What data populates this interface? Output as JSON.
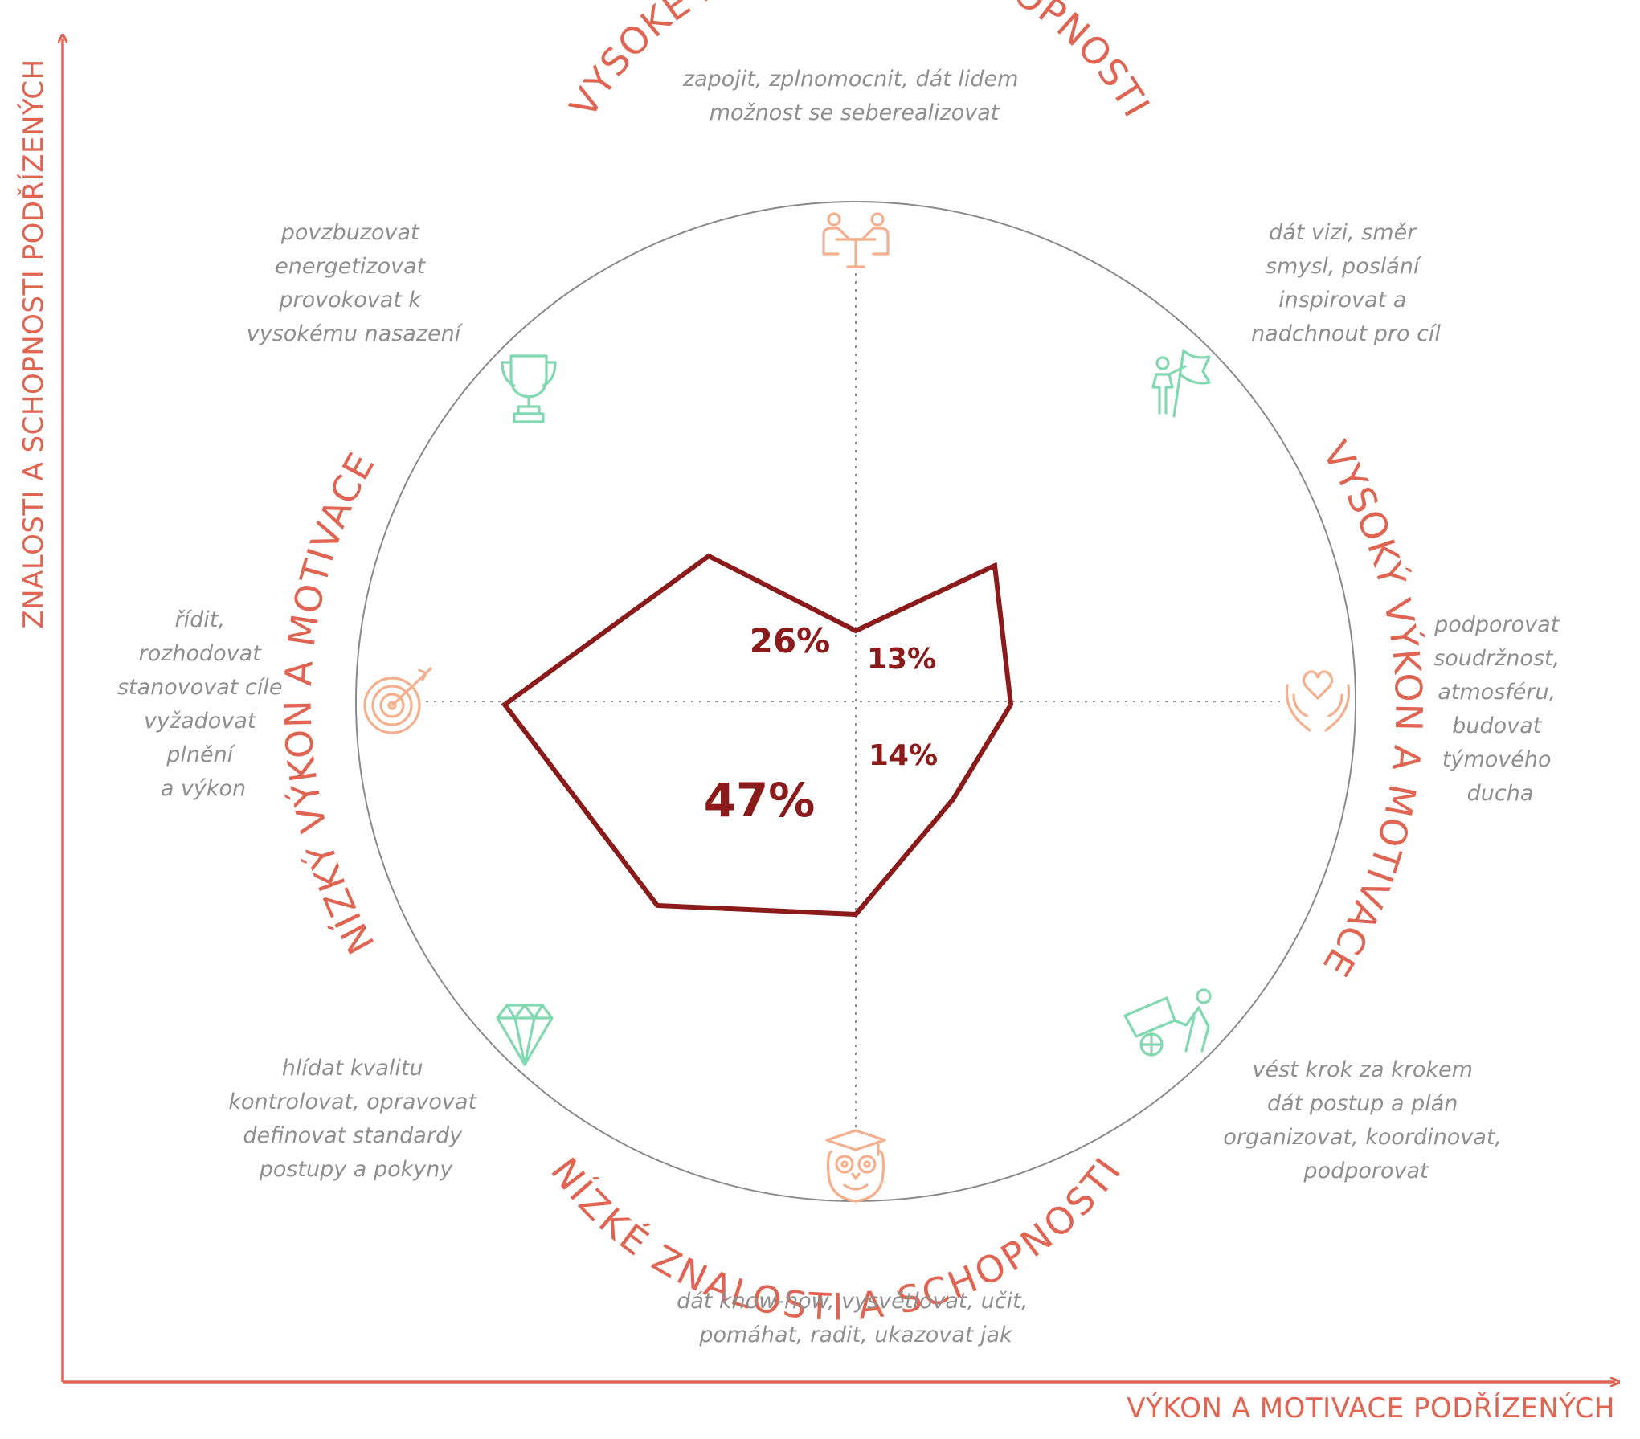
{
  "axes": {
    "y_label": "ZNALOSTI A SCHOPNOSTI PODŘÍZENÝCH",
    "x_label": "VÝKON A MOTIVACE PODŘÍZENÝCH"
  },
  "arc_labels": {
    "top": "VYSOKÉ ZNALOSTI A SCHOPNOSTI",
    "bottom": "NÍZKÉ ZNALOSTI A SCHOPNOSTI",
    "left": "NÍZKÝ VÝKON A MOTIVACE",
    "right": "VYSOKÝ VÝKON A MOTIVACE"
  },
  "descriptions": {
    "top": [
      "zapojit, zplnomocnit, dát lidem",
      "možnost se seberealizovat"
    ],
    "top_left": [
      "povzbuzovat",
      "energetizovat",
      "provokovat k",
      "vysokému nasazení"
    ],
    "top_right": [
      "dát vizi, směr",
      "smysl, poslání",
      "inspirovat a",
      "nadchnout pro cíl"
    ],
    "left": [
      "řídit,",
      "rozhodovat",
      "stanovovat cíle",
      "vyžadovat",
      "plnění",
      "a výkon"
    ],
    "right": [
      "podporovat",
      "soudržnost,",
      "atmosféru,",
      "budovat",
      "týmového",
      "ducha"
    ],
    "bottom_left": [
      "hlídat kvalitu",
      "kontrolovat, opravovat",
      "definovat standardy",
      "postupy a pokyny"
    ],
    "bottom_right": [
      "vést krok za krokem",
      "dát postup a plán",
      "organizovat, koordinovat,",
      "podporovat"
    ],
    "bottom": [
      "dát know-how, vysvětlovat, učit,",
      "pomáhat, radit, ukazovat jak"
    ]
  },
  "icons": {
    "top": "people-at-table-icon",
    "top_left": "trophy-icon",
    "top_right": "person-with-flag-icon",
    "left": "target-icon",
    "right": "hands-heart-icon",
    "bottom_left": "diamond-icon",
    "bottom_right": "person-pushing-cart-icon",
    "bottom": "owl-graduate-icon"
  },
  "percentages": {
    "top_left": "26%",
    "top_right": "13%",
    "bottom_left": "47%",
    "bottom_right": "14%"
  },
  "colors": {
    "accent": "#e06452",
    "profile": "#8b1a1a",
    "icon_green": "#82d8b0",
    "icon_orange": "#f4b08e",
    "description": "#8f8f8f",
    "circle": "#8a8a8a"
  }
}
